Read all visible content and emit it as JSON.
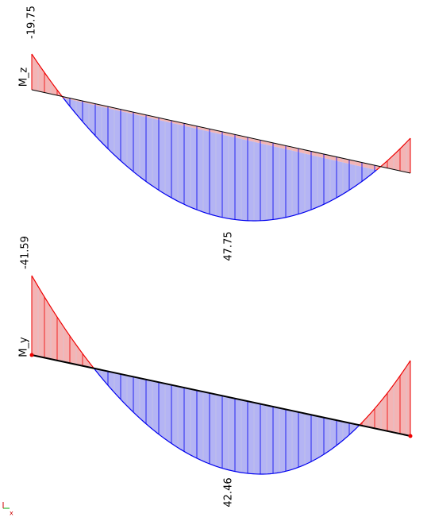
{
  "diagrams": [
    {
      "label": "M_z",
      "min": -19.75,
      "max": 47.75
    },
    {
      "label": "M_y",
      "min": -41.59,
      "max": 42.46
    }
  ]
}
